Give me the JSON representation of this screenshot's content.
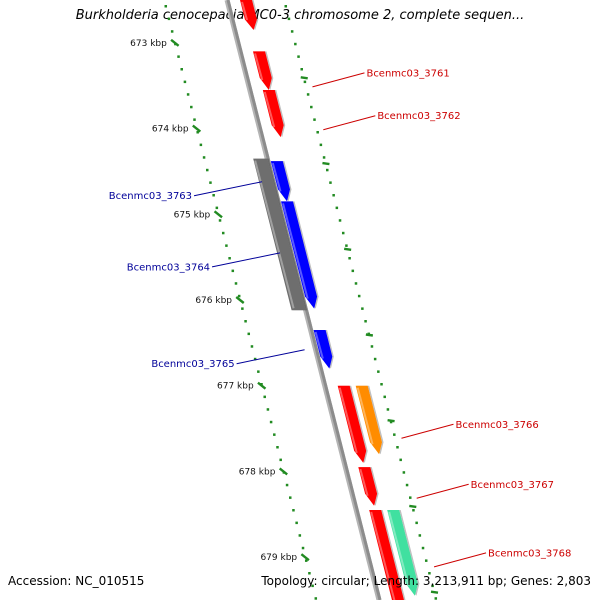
{
  "title": "Burkholderia cenocepacia MC0-3 chromosome 2, complete sequen...",
  "footer": {
    "accession": "Accession: NC_010515",
    "summary": "Topology: circular; Length: 3,213,911 bp; Genes: 2,803"
  },
  "map": {
    "kbp_start": 672.5,
    "kbp_end": 679.5,
    "colors": {
      "backbone": "#8c8c8c",
      "forward_cds": "#ff0000",
      "reverse_cds": "#0000ff",
      "pseudo": "#6e6e6e",
      "orange_feature": "#ff8c00",
      "green_feature": "#40e0a0",
      "tick": "#228b22",
      "label_forward": "#cc0000",
      "label_reverse": "#000099"
    },
    "ticks": [
      {
        "kbp": 673,
        "label": "673 kbp"
      },
      {
        "kbp": 674,
        "label": "674 kbp"
      },
      {
        "kbp": 675,
        "label": "675 kbp"
      },
      {
        "kbp": 676,
        "label": "676 kbp"
      },
      {
        "kbp": 677,
        "label": "677 kbp"
      },
      {
        "kbp": 678,
        "label": "678 kbp"
      },
      {
        "kbp": 679,
        "label": "679 kbp"
      }
    ],
    "features": [
      {
        "start": 672.5,
        "end": 672.85,
        "track": "fwd_cds",
        "color": "#ff0000",
        "arrow": true
      },
      {
        "start": 673.1,
        "end": 673.55,
        "track": "fwd_cds",
        "color": "#ff0000",
        "arrow": true
      },
      {
        "start": 673.55,
        "end": 674.1,
        "track": "fwd_cds",
        "color": "#ff0000",
        "arrow": true
      },
      {
        "start": 674.38,
        "end": 674.85,
        "track": "rev_cds",
        "color": "#0000ff",
        "arrow": true
      },
      {
        "start": 674.85,
        "end": 676.1,
        "track": "rev_cds",
        "color": "#0000ff",
        "arrow": true
      },
      {
        "start": 674.35,
        "end": 676.12,
        "track": "rev_pseudo",
        "color": "#6e6e6e",
        "arrow": false
      },
      {
        "start": 676.35,
        "end": 676.8,
        "track": "rev_cds",
        "color": "#0000ff",
        "arrow": true
      },
      {
        "start": 677.0,
        "end": 677.9,
        "track": "fwd_cds",
        "color": "#ff0000",
        "arrow": true
      },
      {
        "start": 677.0,
        "end": 677.8,
        "track": "fwd_extra",
        "color": "#ff8c00",
        "arrow": true
      },
      {
        "start": 677.95,
        "end": 678.4,
        "track": "fwd_cds",
        "color": "#ff0000",
        "arrow": true
      },
      {
        "start": 678.45,
        "end": 679.7,
        "track": "fwd_cds",
        "color": "#ff0000",
        "arrow": false
      },
      {
        "start": 678.45,
        "end": 679.45,
        "track": "fwd_extra",
        "color": "#40e0a0",
        "arrow": true
      }
    ],
    "gene_labels": [
      {
        "text": "Bcenmc03_3761",
        "side": "forward",
        "kbp": 673.35
      },
      {
        "text": "Bcenmc03_3762",
        "side": "forward",
        "kbp": 673.85
      },
      {
        "text": "Bcenmc03_3763",
        "side": "reverse",
        "kbp": 674.62
      },
      {
        "text": "Bcenmc03_3764",
        "side": "reverse",
        "kbp": 675.45
      },
      {
        "text": "Bcenmc03_3765",
        "side": "reverse",
        "kbp": 676.58
      },
      {
        "text": "Bcenmc03_3766",
        "side": "forward",
        "kbp": 677.45
      },
      {
        "text": "Bcenmc03_3767",
        "side": "forward",
        "kbp": 678.15
      },
      {
        "text": "Bcenmc03_3768",
        "side": "forward",
        "kbp": 678.95
      }
    ]
  }
}
